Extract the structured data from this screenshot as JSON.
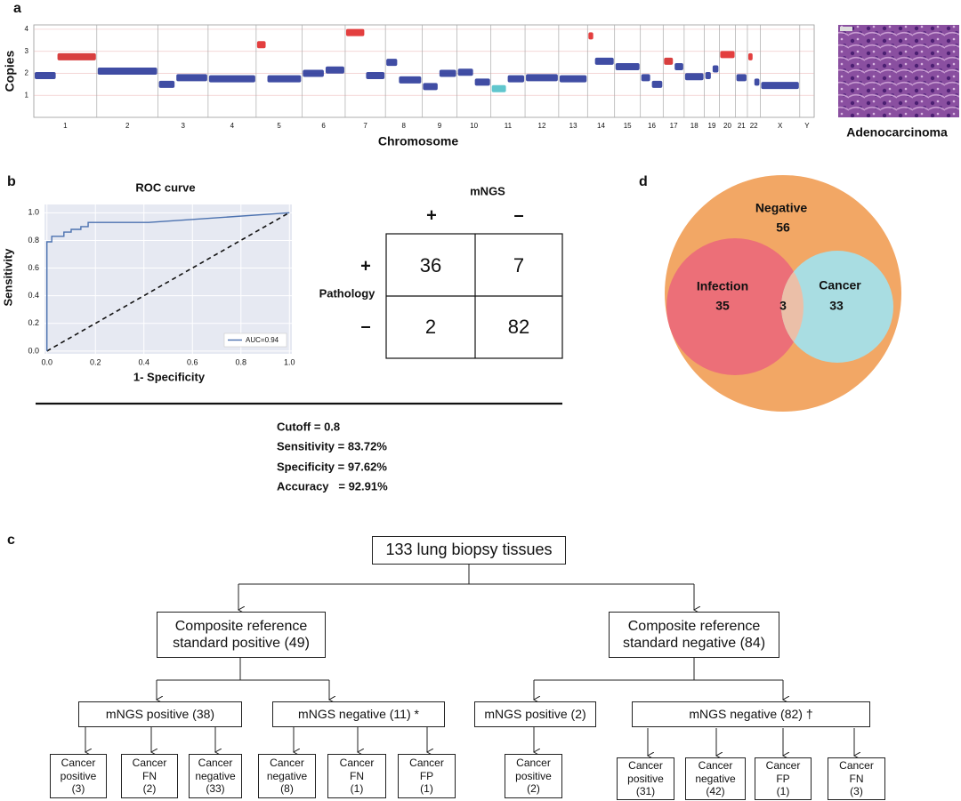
{
  "panel_labels": [
    "a",
    "b",
    "c",
    "d"
  ],
  "chart_data": [
    {
      "type": "cnv",
      "xlabel": "Chromosome",
      "ylabel": "Copies",
      "categories": [
        "1",
        "2",
        "3",
        "4",
        "5",
        "6",
        "7",
        "8",
        "9",
        "10",
        "11",
        "12",
        "13",
        "14",
        "15",
        "16",
        "17",
        "18",
        "19",
        "20",
        "21",
        "22",
        "X",
        "Y"
      ],
      "xlim": [
        0,
        3085
      ],
      "xticks": [
        0,
        249,
        491,
        689,
        879,
        1060,
        1231,
        1390,
        1535,
        1673,
        1807,
        1942,
        2075,
        2189,
        2296,
        2398,
        2488,
        2571,
        2651,
        2710,
        2774,
        2821,
        2872,
        3028,
        3085
      ],
      "ylim": [
        0,
        4.2
      ],
      "yticks": [
        1,
        2,
        3,
        4
      ],
      "grid": true,
      "segments": {
        "x0": [
          0,
          90,
          249,
          491,
          560,
          689,
          879,
          920,
          1060,
          1150,
          1231,
          1310,
          1390,
          1440,
          1535,
          1600,
          1673,
          1740,
          1807,
          1870,
          1942,
          2075,
          2189,
          2215,
          2296,
          2398,
          2440,
          2488,
          2530,
          2571,
          2651,
          2680,
          2710,
          2774,
          2821,
          2845,
          2872
        ],
        "x1": [
          90,
          249,
          491,
          560,
          689,
          879,
          920,
          1060,
          1150,
          1231,
          1310,
          1390,
          1440,
          1535,
          1600,
          1673,
          1740,
          1807,
          1870,
          1942,
          2075,
          2189,
          2215,
          2296,
          2398,
          2440,
          2488,
          2530,
          2571,
          2651,
          2680,
          2710,
          2774,
          2821,
          2845,
          2872,
          3028
        ],
        "values": [
          1.9,
          2.75,
          2.1,
          1.5,
          1.8,
          1.75,
          3.3,
          1.75,
          2.0,
          2.15,
          3.85,
          1.9,
          2.5,
          1.7,
          1.4,
          2.0,
          2.05,
          1.6,
          1.3,
          1.75,
          1.8,
          1.75,
          3.7,
          2.55,
          2.3,
          1.8,
          1.5,
          2.55,
          2.3,
          1.85,
          1.9,
          2.2,
          2.85,
          1.8,
          2.75,
          1.6,
          1.45
        ],
        "colors": [
          "#2b3a9a",
          "#d42a2a",
          "#2b3a9a",
          "#2b3a9a",
          "#2b3a9a",
          "#2b3a9a",
          "#e02a2a",
          "#2b3a9a",
          "#2b3a9a",
          "#2b3a9a",
          "#e02a2a",
          "#2b3a9a",
          "#2b3a9a",
          "#2b3a9a",
          "#2b3a9a",
          "#2b3a9a",
          "#2b3a9a",
          "#2b3a9a",
          "#4fc0c8",
          "#2b3a9a",
          "#2b3a9a",
          "#2b3a9a",
          "#e02a2a",
          "#2b3a9a",
          "#2b3a9a",
          "#2b3a9a",
          "#2b3a9a",
          "#d42a2a",
          "#2b3a9a",
          "#2b3a9a",
          "#2b3a9a",
          "#2b3a9a",
          "#e02a2a",
          "#2b3a9a",
          "#e02a2a",
          "#2b3a9a",
          "#2b3a9a"
        ]
      }
    },
    {
      "type": "line",
      "title": "ROC curve",
      "xlabel": "1- Specificity",
      "ylabel": "Sensitivity",
      "x": [
        0,
        0,
        0.02,
        0.02,
        0.07,
        0.07,
        0.1,
        0.1,
        0.14,
        0.14,
        0.17,
        0.17,
        0.42,
        1
      ],
      "series": [
        {
          "name": "AUC=0.94",
          "color": "#4c72b0",
          "values": [
            0,
            0.79,
            0.79,
            0.83,
            0.83,
            0.86,
            0.86,
            0.88,
            0.88,
            0.9,
            0.9,
            0.93,
            0.93,
            1
          ]
        }
      ],
      "xlim": [
        -0.01,
        1.01
      ],
      "ylim": [
        -0.02,
        1.06
      ],
      "xticks": [
        {
          "value": 0,
          "label": "0.0"
        },
        0.2,
        0.4,
        0.6,
        0.8,
        {
          "value": 1,
          "label": "1.0"
        }
      ],
      "yticks": [
        {
          "value": 0,
          "label": "0.0"
        },
        0.2,
        0.4,
        0.6,
        0.8,
        {
          "value": 1,
          "label": "1.0"
        }
      ],
      "grid": true,
      "legend": "lower right"
    }
  ],
  "histology": {
    "caption": "Adenocarcinoma"
  },
  "confusion": {
    "title": "mNGS",
    "column_labels": [
      "+",
      "–"
    ],
    "row_title": "Pathology",
    "row_labels": [
      "+",
      "–"
    ],
    "cells": [
      [
        36,
        7
      ],
      [
        2,
        82
      ]
    ]
  },
  "stats": {
    "lines": [
      "Cutoff = 0.8",
      "Sensitivity = 83.72%",
      "Specificity = 97.62%",
      "Accuracy   = 92.91%"
    ]
  },
  "venn": {
    "regions": [
      {
        "label": "Negative",
        "value": 56
      },
      {
        "label": "Infection",
        "value": 35
      },
      {
        "value": 3
      },
      {
        "label": "Cancer",
        "value": 33
      }
    ]
  },
  "flowchart": {
    "nodes": [
      {
        "lines": [
          "133 lung biopsy tissues"
        ]
      },
      {
        "lines": [
          "Composite reference",
          "standard positive (49)"
        ]
      },
      {
        "lines": [
          "Composite reference",
          "standard negative (84)"
        ]
      },
      {
        "lines": [
          "mNGS positive (38)"
        ]
      },
      {
        "lines": [
          "mNGS negative (11) *"
        ]
      },
      {
        "lines": [
          "mNGS positive (2)"
        ]
      },
      {
        "lines": [
          "mNGS negative (82) †"
        ]
      },
      {
        "lines": [
          "Cancer",
          "positive",
          "(3)"
        ]
      },
      {
        "lines": [
          "Cancer",
          "FN",
          "(2)"
        ]
      },
      {
        "lines": [
          "Cancer",
          "negative",
          "(33)"
        ]
      },
      {
        "lines": [
          "Cancer",
          "negative",
          "(8)"
        ]
      },
      {
        "lines": [
          "Cancer",
          "FN",
          "(1)"
        ]
      },
      {
        "lines": [
          "Cancer",
          "FP",
          "(1)"
        ]
      },
      {
        "lines": [
          "Cancer",
          "positive",
          "(2)"
        ]
      },
      {
        "lines": [
          "Cancer",
          "positive",
          "(31)"
        ]
      },
      {
        "lines": [
          "Cancer",
          "negative",
          "(42)"
        ]
      },
      {
        "lines": [
          "Cancer",
          "FP",
          "(1)"
        ]
      },
      {
        "lines": [
          "Cancer",
          "FN",
          "(3)"
        ]
      }
    ]
  }
}
